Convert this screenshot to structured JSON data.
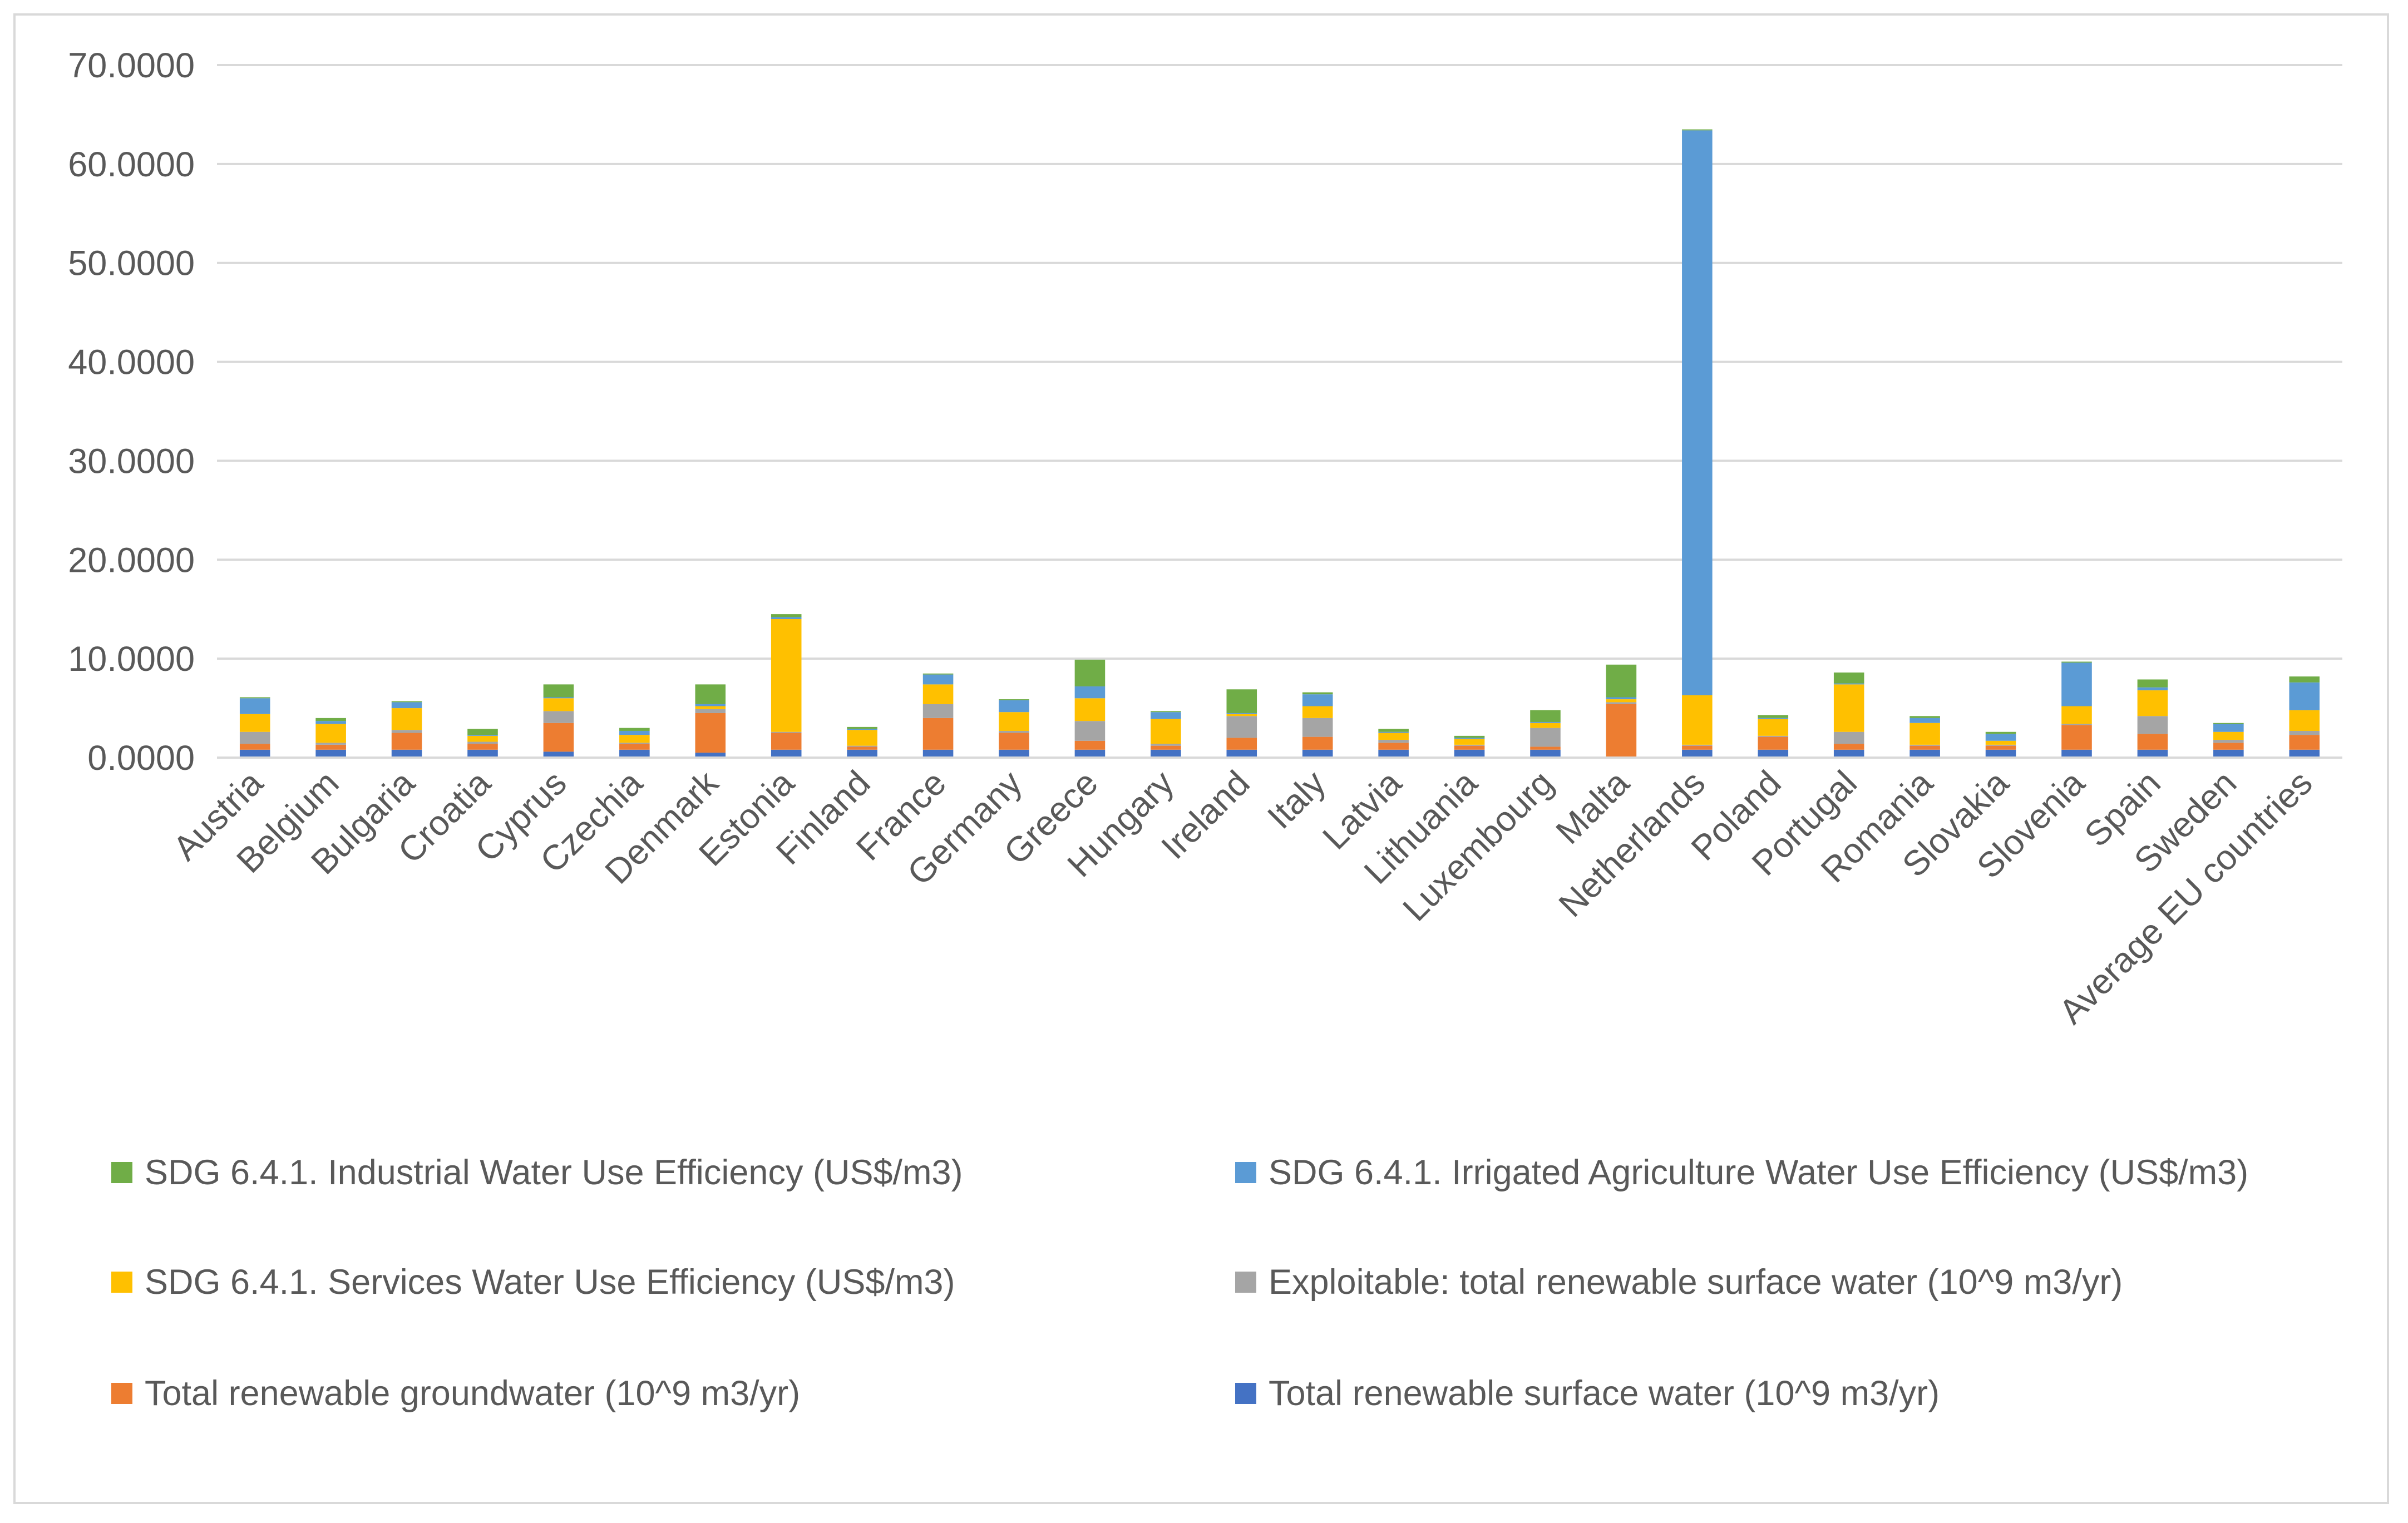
{
  "chart_data": {
    "type": "bar",
    "stacked": true,
    "title": "",
    "xlabel": "",
    "ylabel": "",
    "ylim": [
      0,
      70
    ],
    "y_ticks": [
      "0.0000",
      "10.0000",
      "20.0000",
      "30.0000",
      "40.0000",
      "50.0000",
      "60.0000",
      "70.0000"
    ],
    "y_tick_values": [
      0,
      10,
      20,
      30,
      40,
      50,
      60,
      70
    ],
    "grid": true,
    "legend_position": "bottom",
    "categories": [
      "Austria",
      "Belgium",
      "Bulgaria",
      "Croatia",
      "Cyprus",
      "Czechia",
      "Denmark",
      "Estonia",
      "Finland",
      "France",
      "Germany",
      "Greece",
      "Hungary",
      "Ireland",
      "Italy",
      "Latvia",
      "Lithuania",
      "Luxembourg",
      "Malta",
      "Netherlands",
      "Poland",
      "Portugal",
      "Romania",
      "Slovakia",
      "Slovenia",
      "Spain",
      "Sweden",
      "Average EU countries"
    ],
    "series": [
      {
        "name": "Total renewable surface water (10^9 m3/yr)",
        "color": "#4472c4",
        "values": [
          0.8,
          0.8,
          0.8,
          0.8,
          0.6,
          0.8,
          0.5,
          0.8,
          0.8,
          0.8,
          0.8,
          0.8,
          0.8,
          0.8,
          0.8,
          0.8,
          0.8,
          0.8,
          0.1,
          0.8,
          0.8,
          0.8,
          0.8,
          0.8,
          0.8,
          0.8,
          0.8,
          0.8
        ]
      },
      {
        "name": "Total renewable groundwater (10^9 m3/yr)",
        "color": "#ed7d31",
        "values": [
          0.6,
          0.5,
          1.7,
          0.6,
          2.9,
          0.6,
          4.0,
          1.7,
          0.3,
          3.2,
          1.7,
          0.9,
          0.4,
          1.2,
          1.3,
          0.7,
          0.4,
          0.3,
          5.3,
          0.4,
          1.3,
          0.6,
          0.4,
          0.4,
          2.5,
          1.6,
          0.7,
          1.5
        ]
      },
      {
        "name": "Exploitable: total renewable surface water (10^9 m3/yr)",
        "color": "#a5a5a5",
        "values": [
          1.2,
          0.2,
          0.3,
          0.2,
          1.2,
          0.1,
          0.4,
          0.1,
          0.1,
          1.4,
          0.2,
          2.0,
          0.2,
          2.2,
          1.9,
          0.3,
          0.1,
          1.9,
          0.2,
          0.1,
          0.1,
          1.2,
          0.1,
          0.1,
          0.1,
          1.8,
          0.3,
          0.4
        ]
      },
      {
        "name": "SDG 6.4.1. Services Water Use Efficiency (US$/m3)",
        "color": "#ffc000",
        "values": [
          1.8,
          1.9,
          2.2,
          0.6,
          1.3,
          0.8,
          0.3,
          11.4,
          1.6,
          2.0,
          1.9,
          2.3,
          2.5,
          0.2,
          1.2,
          0.7,
          0.6,
          0.5,
          0.3,
          5.0,
          1.7,
          4.8,
          2.2,
          0.4,
          1.8,
          2.6,
          0.8,
          2.1
        ]
      },
      {
        "name": "SDG 6.4.1. Irrigated Agriculture Water Use Efficiency (US$/m3)",
        "color": "#5b9bd5",
        "values": [
          1.6,
          0.3,
          0.6,
          0.1,
          0.1,
          0.4,
          0.2,
          0.2,
          0.1,
          1.0,
          1.2,
          1.2,
          0.7,
          0.1,
          1.2,
          0.1,
          0.1,
          0.1,
          0.2,
          57.1,
          0.1,
          0.1,
          0.5,
          0.7,
          4.4,
          0.3,
          0.8,
          2.8
        ]
      },
      {
        "name": "SDG 6.4.1. Industrial Water Use Efficiency (US$/m3)",
        "color": "#70ad47",
        "values": [
          0.1,
          0.3,
          0.1,
          0.6,
          1.3,
          0.3,
          2.0,
          0.3,
          0.2,
          0.1,
          0.1,
          2.7,
          0.1,
          2.4,
          0.2,
          0.3,
          0.2,
          1.2,
          3.3,
          0.1,
          0.3,
          1.1,
          0.2,
          0.2,
          0.1,
          0.8,
          0.1,
          0.6
        ]
      }
    ],
    "legend_order": [
      5,
      4,
      3,
      2,
      1,
      0
    ]
  }
}
